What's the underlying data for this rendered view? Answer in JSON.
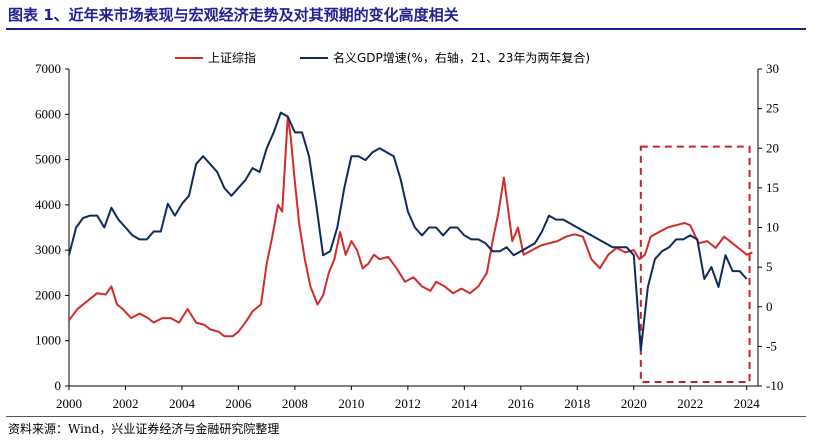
{
  "figure": {
    "title": "图表 1、近年来市场表现与宏观经济走势及对其预期的变化高度相关",
    "source": "资料来源：Wind，兴业证券经济与金融研究院整理"
  },
  "chart_data": {
    "type": "line",
    "title": "",
    "xlabel": "",
    "ylabel_left": "",
    "ylabel_right": "",
    "x_ticks": [
      "2000",
      "2002",
      "2004",
      "2006",
      "2008",
      "2010",
      "2012",
      "2014",
      "2016",
      "2018",
      "2020",
      "2022",
      "2024"
    ],
    "xlim": [
      2000,
      2024.4
    ],
    "y_left": {
      "lim": [
        0,
        7000
      ],
      "ticks": [
        "0",
        "1000",
        "2000",
        "3000",
        "4000",
        "5000",
        "6000",
        "7000"
      ]
    },
    "y_right": {
      "lim": [
        -10,
        30
      ],
      "ticks": [
        "-10",
        "-5",
        "0",
        "5",
        "10",
        "15",
        "20",
        "25",
        "30"
      ]
    },
    "legend": {
      "placement": "top"
    },
    "highlight_box": {
      "x_range": [
        2020.25,
        2024.1
      ],
      "y_right_range": [
        -9.5,
        20.2
      ],
      "color": "#c0262d",
      "style": "dashed"
    },
    "series": [
      {
        "name": "上证综指",
        "axis": "left",
        "color": "#d12b2b",
        "points": [
          [
            2000.0,
            1450
          ],
          [
            2000.3,
            1700
          ],
          [
            2000.6,
            1850
          ],
          [
            2001.0,
            2050
          ],
          [
            2001.3,
            2020
          ],
          [
            2001.5,
            2200
          ],
          [
            2001.7,
            1800
          ],
          [
            2001.9,
            1700
          ],
          [
            2002.2,
            1500
          ],
          [
            2002.5,
            1600
          ],
          [
            2002.8,
            1500
          ],
          [
            2003.0,
            1400
          ],
          [
            2003.3,
            1500
          ],
          [
            2003.6,
            1500
          ],
          [
            2003.9,
            1400
          ],
          [
            2004.2,
            1700
          ],
          [
            2004.5,
            1400
          ],
          [
            2004.8,
            1350
          ],
          [
            2005.0,
            1250
          ],
          [
            2005.3,
            1200
          ],
          [
            2005.5,
            1100
          ],
          [
            2005.8,
            1100
          ],
          [
            2006.0,
            1200
          ],
          [
            2006.3,
            1450
          ],
          [
            2006.5,
            1650
          ],
          [
            2006.8,
            1800
          ],
          [
            2007.0,
            2700
          ],
          [
            2007.2,
            3300
          ],
          [
            2007.4,
            4000
          ],
          [
            2007.55,
            3850
          ],
          [
            2007.75,
            5950
          ],
          [
            2007.85,
            5500
          ],
          [
            2008.0,
            4500
          ],
          [
            2008.15,
            3600
          ],
          [
            2008.35,
            2800
          ],
          [
            2008.55,
            2200
          ],
          [
            2008.8,
            1800
          ],
          [
            2009.0,
            2000
          ],
          [
            2009.2,
            2500
          ],
          [
            2009.4,
            2800
          ],
          [
            2009.6,
            3400
          ],
          [
            2009.8,
            2900
          ],
          [
            2010.0,
            3200
          ],
          [
            2010.2,
            3000
          ],
          [
            2010.4,
            2600
          ],
          [
            2010.6,
            2700
          ],
          [
            2010.8,
            2900
          ],
          [
            2011.0,
            2800
          ],
          [
            2011.3,
            2850
          ],
          [
            2011.6,
            2600
          ],
          [
            2011.9,
            2300
          ],
          [
            2012.2,
            2400
          ],
          [
            2012.5,
            2200
          ],
          [
            2012.8,
            2100
          ],
          [
            2013.0,
            2300
          ],
          [
            2013.3,
            2200
          ],
          [
            2013.6,
            2050
          ],
          [
            2013.9,
            2150
          ],
          [
            2014.2,
            2050
          ],
          [
            2014.5,
            2200
          ],
          [
            2014.8,
            2500
          ],
          [
            2015.0,
            3200
          ],
          [
            2015.2,
            3800
          ],
          [
            2015.4,
            4600
          ],
          [
            2015.55,
            3900
          ],
          [
            2015.7,
            3200
          ],
          [
            2015.9,
            3500
          ],
          [
            2016.1,
            2900
          ],
          [
            2016.4,
            3000
          ],
          [
            2016.7,
            3100
          ],
          [
            2017.0,
            3150
          ],
          [
            2017.3,
            3200
          ],
          [
            2017.6,
            3300
          ],
          [
            2017.9,
            3350
          ],
          [
            2018.2,
            3300
          ],
          [
            2018.5,
            2800
          ],
          [
            2018.8,
            2600
          ],
          [
            2019.1,
            2900
          ],
          [
            2019.4,
            3050
          ],
          [
            2019.7,
            2950
          ],
          [
            2020.0,
            3000
          ],
          [
            2020.2,
            2800
          ],
          [
            2020.4,
            2900
          ],
          [
            2020.6,
            3300
          ],
          [
            2020.9,
            3400
          ],
          [
            2021.2,
            3500
          ],
          [
            2021.5,
            3550
          ],
          [
            2021.8,
            3600
          ],
          [
            2022.0,
            3550
          ],
          [
            2022.3,
            3150
          ],
          [
            2022.6,
            3200
          ],
          [
            2022.9,
            3050
          ],
          [
            2023.2,
            3300
          ],
          [
            2023.5,
            3150
          ],
          [
            2023.8,
            3000
          ],
          [
            2024.0,
            2900
          ],
          [
            2024.2,
            2950
          ]
        ]
      },
      {
        "name": "名义GDP增速(%，右轴，21、23年为两年复合)",
        "axis": "right",
        "color": "#0f2a5c",
        "points": [
          [
            2000.0,
            6.5
          ],
          [
            2000.25,
            10
          ],
          [
            2000.5,
            11.2
          ],
          [
            2000.75,
            11.5
          ],
          [
            2001.0,
            11.5
          ],
          [
            2001.25,
            10
          ],
          [
            2001.5,
            12.5
          ],
          [
            2001.75,
            11
          ],
          [
            2002.0,
            10
          ],
          [
            2002.25,
            9
          ],
          [
            2002.5,
            8.5
          ],
          [
            2002.75,
            8.5
          ],
          [
            2003.0,
            9.5
          ],
          [
            2003.25,
            9.5
          ],
          [
            2003.5,
            13
          ],
          [
            2003.75,
            11.5
          ],
          [
            2004.0,
            13
          ],
          [
            2004.25,
            14
          ],
          [
            2004.5,
            18
          ],
          [
            2004.75,
            19
          ],
          [
            2005.0,
            18
          ],
          [
            2005.25,
            17
          ],
          [
            2005.5,
            15
          ],
          [
            2005.75,
            14
          ],
          [
            2006.0,
            15
          ],
          [
            2006.25,
            16
          ],
          [
            2006.5,
            17.5
          ],
          [
            2006.75,
            17
          ],
          [
            2007.0,
            20
          ],
          [
            2007.25,
            22
          ],
          [
            2007.5,
            24.5
          ],
          [
            2007.75,
            24
          ],
          [
            2008.0,
            22
          ],
          [
            2008.25,
            22
          ],
          [
            2008.5,
            19
          ],
          [
            2008.75,
            13
          ],
          [
            2009.0,
            6.5
          ],
          [
            2009.25,
            7
          ],
          [
            2009.5,
            10
          ],
          [
            2009.75,
            15
          ],
          [
            2010.0,
            19
          ],
          [
            2010.25,
            19
          ],
          [
            2010.5,
            18.5
          ],
          [
            2010.75,
            19.5
          ],
          [
            2011.0,
            20
          ],
          [
            2011.25,
            19.5
          ],
          [
            2011.5,
            19
          ],
          [
            2011.75,
            16
          ],
          [
            2012.0,
            12
          ],
          [
            2012.25,
            10
          ],
          [
            2012.5,
            9
          ],
          [
            2012.75,
            10
          ],
          [
            2013.0,
            10
          ],
          [
            2013.25,
            9
          ],
          [
            2013.5,
            10
          ],
          [
            2013.75,
            10
          ],
          [
            2014.0,
            9
          ],
          [
            2014.25,
            8.5
          ],
          [
            2014.5,
            8.5
          ],
          [
            2014.75,
            8
          ],
          [
            2015.0,
            7
          ],
          [
            2015.25,
            7
          ],
          [
            2015.5,
            7.5
          ],
          [
            2015.75,
            6.5
          ],
          [
            2016.0,
            7
          ],
          [
            2016.25,
            7.5
          ],
          [
            2016.5,
            8
          ],
          [
            2016.75,
            9.5
          ],
          [
            2017.0,
            11.5
          ],
          [
            2017.25,
            11
          ],
          [
            2017.5,
            11
          ],
          [
            2017.75,
            10.5
          ],
          [
            2018.0,
            10
          ],
          [
            2018.25,
            9.5
          ],
          [
            2018.5,
            9
          ],
          [
            2018.75,
            8.5
          ],
          [
            2019.0,
            8
          ],
          [
            2019.25,
            7.5
          ],
          [
            2019.5,
            7.5
          ],
          [
            2019.75,
            7.5
          ],
          [
            2020.0,
            6.5
          ],
          [
            2020.25,
            -5.5
          ],
          [
            2020.5,
            2.5
          ],
          [
            2020.75,
            6
          ],
          [
            2021.0,
            7
          ],
          [
            2021.25,
            7.5
          ],
          [
            2021.5,
            8.5
          ],
          [
            2021.75,
            8.5
          ],
          [
            2022.0,
            9
          ],
          [
            2022.25,
            8.5
          ],
          [
            2022.5,
            3.5
          ],
          [
            2022.75,
            5
          ],
          [
            2023.0,
            2.5
          ],
          [
            2023.25,
            6.5
          ],
          [
            2023.5,
            4.5
          ],
          [
            2023.75,
            4.5
          ],
          [
            2024.0,
            3.5
          ]
        ]
      }
    ]
  }
}
